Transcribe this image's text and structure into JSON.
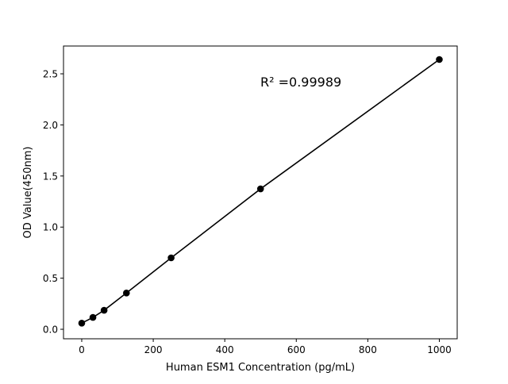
{
  "chart_data": {
    "type": "scatter",
    "title": "",
    "xlabel": "Human ESM1 Concentration (pg/mL)",
    "ylabel": "OD Value(450nm)",
    "xlim": [
      -51,
      1050
    ],
    "ylim": [
      -0.093,
      2.772
    ],
    "x_ticks": [
      0,
      200,
      400,
      600,
      800,
      1000
    ],
    "x_tick_labels": [
      "0",
      "200",
      "400",
      "600",
      "800",
      "1000"
    ],
    "y_ticks": [
      0.0,
      0.5,
      1.0,
      1.5,
      2.0,
      2.5
    ],
    "y_tick_labels": [
      "0.0",
      "0.5",
      "1.0",
      "1.5",
      "2.0",
      "2.5"
    ],
    "grid": false,
    "annotation": "R² =0.99989",
    "series": [
      {
        "x": [
          0,
          31.25,
          62.5,
          125,
          250,
          500,
          1000
        ],
        "y": [
          0.06,
          0.116,
          0.186,
          0.355,
          0.699,
          1.374,
          2.64
        ],
        "color": "#000000",
        "marker": "circle",
        "line": true
      }
    ]
  }
}
